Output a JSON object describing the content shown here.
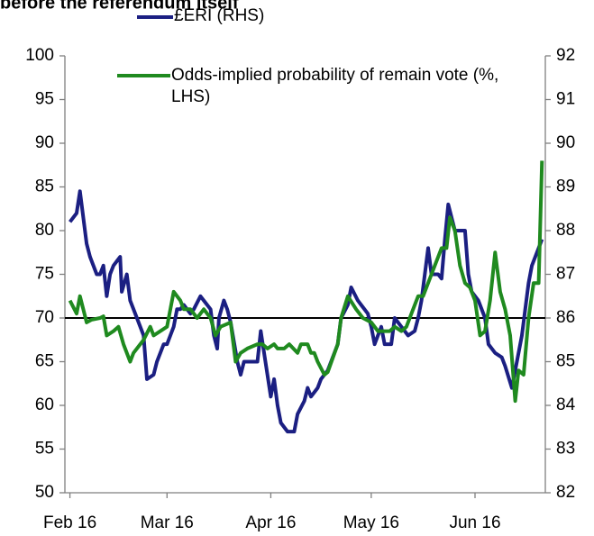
{
  "chart_data": {
    "type": "line",
    "title": "before the referendum itself",
    "xlim": [
      -1.5,
      142
    ],
    "xticks": [
      {
        "value": 0,
        "label": "Feb 16"
      },
      {
        "value": 29,
        "label": "Mar 16"
      },
      {
        "value": 60,
        "label": "Apr 16"
      },
      {
        "value": 90,
        "label": "May 16"
      },
      {
        "value": 121,
        "label": "Jun 16"
      }
    ],
    "ylim": [
      50,
      100
    ],
    "yticks": [
      50,
      55,
      60,
      65,
      70,
      75,
      80,
      85,
      90,
      95,
      100
    ],
    "y2lim": [
      82,
      92
    ],
    "y2ticks": [
      82,
      83,
      84,
      85,
      86,
      87,
      88,
      89,
      90,
      91,
      92
    ],
    "reference_line": 70,
    "series": [
      {
        "name": "£ERI (RHS)",
        "color": "#1b1f82",
        "axis": "y2",
        "x": [
          0,
          2,
          3,
          5,
          6,
          8,
          9,
          10,
          11,
          12,
          13,
          15,
          15.5,
          17,
          18,
          20,
          22,
          23,
          25,
          26,
          28,
          29,
          31,
          32,
          33,
          34,
          36,
          37,
          39,
          40,
          42,
          43,
          44,
          44.5,
          46,
          47,
          48,
          50,
          51,
          52,
          54,
          56,
          57,
          58,
          60,
          61,
          62,
          63,
          65,
          67,
          68,
          70,
          71,
          72,
          74,
          75,
          77,
          79,
          80,
          81,
          83,
          84,
          86,
          87,
          89,
          90,
          91,
          93,
          94,
          96,
          97,
          99,
          101,
          103,
          104,
          105,
          107,
          108,
          110,
          111,
          112,
          113,
          115,
          116,
          118,
          119,
          120,
          122,
          124,
          125,
          127,
          129,
          130,
          132,
          133,
          135,
          137,
          138,
          140,
          141
        ],
        "values": [
          88.2,
          88.4,
          88.9,
          87.7,
          87.4,
          87,
          87,
          87.2,
          86.5,
          87,
          87.2,
          87.4,
          86.6,
          87,
          86.4,
          86,
          85.6,
          84.6,
          84.7,
          85,
          85.4,
          85.4,
          85.8,
          86.2,
          86.2,
          86.3,
          86.1,
          86.2,
          86.5,
          86.4,
          86.2,
          85.6,
          85.3,
          86,
          86.4,
          86.2,
          85.9,
          85,
          84.7,
          85,
          85,
          85,
          85.7,
          85.2,
          84.2,
          84.6,
          84,
          83.6,
          83.4,
          83.4,
          83.8,
          84.1,
          84.4,
          84.2,
          84.4,
          84.6,
          84.8,
          85.2,
          85.4,
          86,
          86.3,
          86.7,
          86.4,
          86.3,
          86.1,
          85.8,
          85.4,
          85.8,
          85.4,
          85.4,
          86,
          85.8,
          85.6,
          85.7,
          86,
          86.4,
          87.6,
          87,
          87,
          86.9,
          87.8,
          88.6,
          88,
          88,
          88,
          87,
          86.6,
          86.4,
          86,
          85.4,
          85.2,
          85.1,
          84.9,
          84.4,
          84.8,
          85.6,
          86.8,
          87.2,
          87.6,
          87.8
        ]
      },
      {
        "name": "Odds-implied probability of remain vote (%, LHS)",
        "color": "#1f8a1f",
        "x": [
          0,
          2,
          3,
          5,
          6.5,
          9,
          10,
          11,
          13,
          14.5,
          16,
          18,
          19,
          21,
          22,
          24,
          25,
          27,
          29,
          31,
          33,
          34,
          36,
          38,
          40,
          42,
          43.5,
          45,
          48,
          49.5,
          51,
          53,
          56,
          57.5,
          59,
          61,
          62,
          64,
          65.5,
          68,
          69,
          71,
          72,
          73,
          74,
          76,
          77,
          80,
          81,
          83,
          85.5,
          87.5,
          90,
          92,
          93.5,
          95.5,
          97,
          99,
          100.5,
          102.5,
          104,
          105.5,
          107,
          109,
          111,
          112.5,
          113.5,
          115,
          116.5,
          118,
          119.5,
          121,
          122.5,
          124,
          125.5,
          127,
          128.5,
          130,
          131.5,
          133,
          134,
          135.5,
          137,
          138.5,
          140,
          141
        ],
        "values": [
          72,
          70.5,
          72.5,
          69.5,
          69.8,
          70,
          70.2,
          68,
          68.5,
          69,
          67,
          65,
          66,
          67,
          67.5,
          69,
          68,
          68.5,
          69,
          73,
          72,
          71,
          71,
          70,
          71,
          70,
          68,
          69,
          69.5,
          65,
          66,
          66.5,
          67,
          67,
          66.5,
          67,
          66.5,
          66.5,
          67,
          66,
          67,
          67,
          66,
          66,
          65,
          63.5,
          63.8,
          67,
          70,
          72.5,
          71,
          70,
          69.5,
          68.5,
          68.5,
          68.5,
          69,
          68.5,
          69,
          71,
          72.5,
          72.5,
          74,
          76,
          78,
          78,
          81.5,
          80,
          76,
          74,
          73.5,
          72,
          68,
          68.5,
          72,
          77.5,
          73,
          71,
          68,
          60.5,
          64,
          63.5,
          70,
          74,
          74,
          88
        ]
      }
    ]
  }
}
